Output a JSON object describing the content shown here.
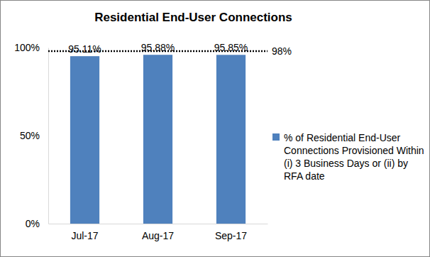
{
  "chart_data": {
    "type": "bar",
    "title": "Residential End-User Connections",
    "categories": [
      "Jul-17",
      "Aug-17",
      "Sep-17"
    ],
    "series": [
      {
        "name": "% of Residential End-User Connections Provisioned Within (i) 3 Business Days or (ii) by RFA date",
        "color": "#4f81bd",
        "values": [
          95.11,
          95.88,
          95.85
        ],
        "value_labels": [
          "95.11%",
          "95.88%",
          "95.85%"
        ]
      }
    ],
    "target": {
      "value": 98,
      "label": "98%",
      "line_style": "dotted"
    },
    "ylim": [
      0,
      100
    ],
    "yticks": [
      {
        "value": 0,
        "label": "0%"
      },
      {
        "value": 50,
        "label": "50%"
      },
      {
        "value": 100,
        "label": "100%"
      }
    ],
    "grid": false,
    "legend": "right",
    "data_labels": true
  }
}
